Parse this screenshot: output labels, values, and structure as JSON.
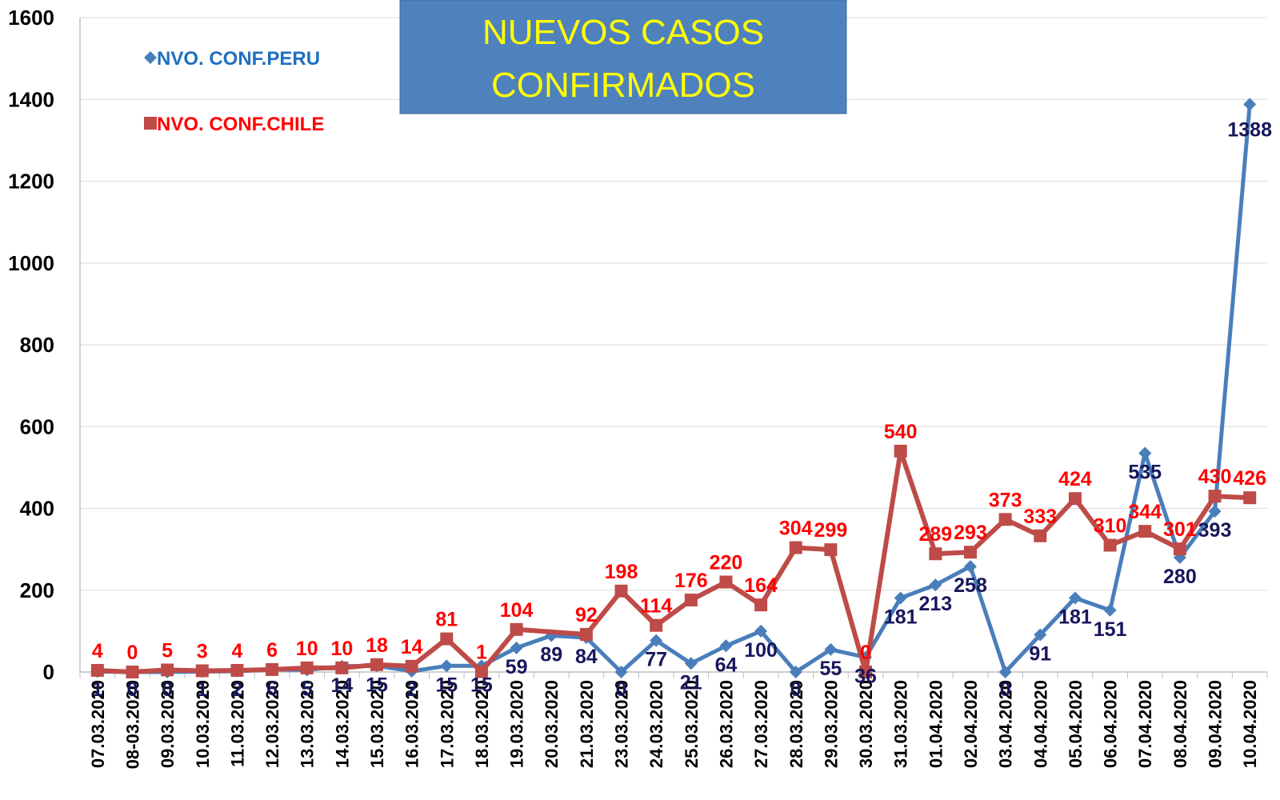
{
  "chart_data": {
    "type": "line",
    "title": [
      "NUEVOS CASOS",
      "CONFIRMADOS"
    ],
    "ylim": [
      0,
      1600
    ],
    "yticks": [
      0,
      200,
      400,
      600,
      800,
      1000,
      1200,
      1400,
      1600
    ],
    "grid": "horizontal",
    "legend_placement": "top-left",
    "categories": [
      "07.03.2020",
      "08-03.2020",
      "09.03.2020",
      "10.03.2020",
      "11.03.2020",
      "12.03.2020",
      "13.03.2020",
      "14.03.2020",
      "15.03.2020",
      "16.03.2020",
      "17.03.2020",
      "18.03.2020",
      "19.03.2020",
      "20.03.2020",
      "21.03.2020",
      "23.03.2020",
      "24.03.2020",
      "25.03.2020",
      "26.03.2020",
      "27.03.2020",
      "28.03.2020",
      "29.03.2020",
      "30.03.2020",
      "31.03.2020",
      "01.04.2020",
      "02.04.2020",
      "03.04.2020",
      "04.04.2020",
      "05.04.2020",
      "06.04.2020",
      "07.04.2020",
      "08.04.2020",
      "09.04.2020",
      "10.04.2020"
    ],
    "series": [
      {
        "name": "NVO. CONF.PERU",
        "color": "#4a7ebb",
        "label_color": "#17175c",
        "marker": "diamond",
        "values": [
          1,
          0,
          0,
          1,
          2,
          6,
          5,
          14,
          15,
          2,
          15,
          15,
          59,
          89,
          84,
          0,
          77,
          21,
          64,
          100,
          0,
          55,
          36,
          181,
          213,
          258,
          0,
          91,
          181,
          151,
          535,
          280,
          393,
          1388
        ],
        "labels": [
          "1",
          "0",
          "0",
          "1",
          "2",
          "6",
          "5",
          "14",
          "15",
          "2",
          "15",
          "15",
          "59",
          "89",
          "84",
          "0",
          "77",
          "21",
          "64",
          "100",
          "0",
          "55",
          "36",
          "181",
          "213",
          "258",
          "0",
          "91",
          "181",
          "151",
          "535",
          "280",
          "393",
          "1388"
        ]
      },
      {
        "name": "NVO. CONF.CHILE",
        "color": "#be4b48",
        "label_color": "#ff0000",
        "marker": "square",
        "values": [
          4,
          0,
          5,
          3,
          4,
          6,
          10,
          10,
          18,
          14,
          81,
          1,
          104,
          null,
          92,
          198,
          114,
          176,
          220,
          164,
          304,
          299,
          0,
          540,
          289,
          293,
          373,
          333,
          424,
          310,
          344,
          301,
          430,
          426
        ],
        "labels": [
          "4",
          "0",
          "5",
          "3",
          "4",
          "6",
          "10",
          "10",
          "18",
          "14",
          "81",
          "1",
          "104",
          "",
          "92",
          "198",
          "114",
          "176",
          "220",
          "164",
          "304",
          "299",
          "0",
          "540",
          "289",
          "293",
          "373",
          "333",
          "424",
          "310",
          "344",
          "301",
          "430",
          "426"
        ]
      }
    ]
  }
}
